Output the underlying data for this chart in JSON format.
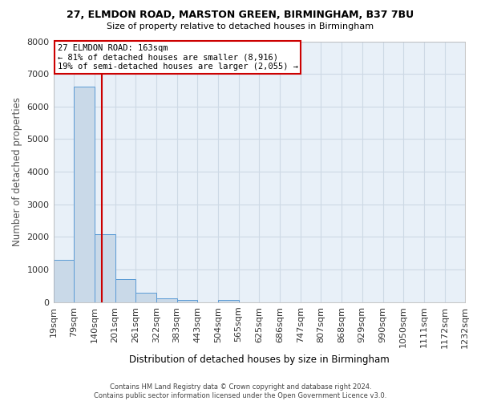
{
  "title_line1": "27, ELMDON ROAD, MARSTON GREEN, BIRMINGHAM, B37 7BU",
  "title_line2": "Size of property relative to detached houses in Birmingham",
  "xlabel": "Distribution of detached houses by size in Birmingham",
  "ylabel": "Number of detached properties",
  "footnote": "Contains HM Land Registry data © Crown copyright and database right 2024.\nContains public sector information licensed under the Open Government Licence v3.0.",
  "bin_edges": [
    19,
    79,
    140,
    201,
    261,
    322,
    383,
    443,
    504,
    565,
    625,
    686,
    747,
    807,
    868,
    929,
    990,
    1050,
    1111,
    1172,
    1232
  ],
  "bin_counts": [
    1300,
    6600,
    2090,
    700,
    290,
    115,
    60,
    0,
    60,
    0,
    0,
    0,
    0,
    0,
    0,
    0,
    0,
    0,
    0,
    0
  ],
  "property_size": 163,
  "annotation_line1": "27 ELMDON ROAD: 163sqm",
  "annotation_line2": "← 81% of detached houses are smaller (8,916)",
  "annotation_line3": "19% of semi-detached houses are larger (2,055) →",
  "bar_color": "#c9d9e8",
  "bar_edge_color": "#5b9bd5",
  "vline_color": "#cc0000",
  "annotation_box_facecolor": "#ffffff",
  "annotation_box_edgecolor": "#cc0000",
  "grid_color": "#cdd9e5",
  "background_color": "#e8f0f8",
  "ylim": [
    0,
    8000
  ],
  "yticks": [
    0,
    1000,
    2000,
    3000,
    4000,
    5000,
    6000,
    7000,
    8000
  ]
}
